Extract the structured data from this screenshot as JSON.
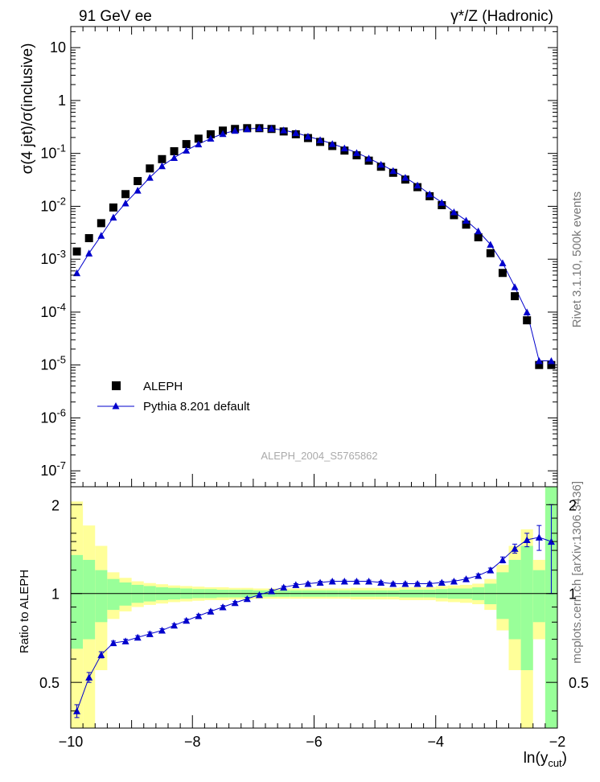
{
  "header": {
    "left_title": "91 GeV ee",
    "right_title": "γ*/Z (Hadronic)"
  },
  "side_labels": {
    "rivet": "Rivet 3.1.10,  500k events",
    "mcplots": "mcplots.cern.ch [arXiv:1306.3436]"
  },
  "watermark": "ALEPH_2004_S5765862",
  "colors": {
    "data": "#000000",
    "mc": "#0000cc",
    "band_inner": "#99ff99",
    "band_outer": "#ffff99",
    "watermark": "#aaaaaa",
    "side": "#777777"
  },
  "chart_data": [
    {
      "type": "scatter",
      "panel": "main",
      "ylabel": "σ(4 jet)/σ(inclusive)",
      "yscale": "log",
      "ylim": [
        5e-08,
        25
      ],
      "xlim": [
        -10.0,
        -2.0
      ],
      "x_ticks": [
        -10,
        -8,
        -6,
        -4,
        -2
      ],
      "y_tick_labels": [
        "10",
        "1",
        "10^-1",
        "10^-2",
        "10^-3",
        "10^-4",
        "10^-5",
        "10^-6",
        "10^-7"
      ],
      "legend_position": "bottom-left",
      "series": [
        {
          "name": "ALEPH",
          "marker": "square",
          "x": [
            -9.9,
            -9.7,
            -9.5,
            -9.3,
            -9.1,
            -8.9,
            -8.7,
            -8.5,
            -8.3,
            -8.1,
            -7.9,
            -7.7,
            -7.5,
            -7.3,
            -7.1,
            -6.9,
            -6.7,
            -6.5,
            -6.3,
            -6.1,
            -5.9,
            -5.7,
            -5.5,
            -5.3,
            -5.1,
            -4.9,
            -4.7,
            -4.5,
            -4.3,
            -4.1,
            -3.9,
            -3.7,
            -3.5,
            -3.3,
            -3.1,
            -2.9,
            -2.7,
            -2.5,
            -2.3,
            -2.1
          ],
          "y": [
            0.0014,
            0.0025,
            0.0048,
            0.0095,
            0.017,
            0.03,
            0.052,
            0.078,
            0.11,
            0.15,
            0.19,
            0.23,
            0.27,
            0.29,
            0.3,
            0.3,
            0.29,
            0.26,
            0.23,
            0.195,
            0.165,
            0.138,
            0.113,
            0.092,
            0.073,
            0.056,
            0.043,
            0.032,
            0.023,
            0.0155,
            0.0105,
            0.0068,
            0.0045,
            0.0026,
            0.0013,
            0.00055,
            0.0002,
            7e-05,
            1e-05,
            1e-05
          ]
        },
        {
          "name": "Pythia 8.201 default",
          "marker": "triangle",
          "x": [
            -9.9,
            -9.7,
            -9.5,
            -9.3,
            -9.1,
            -8.9,
            -8.7,
            -8.5,
            -8.3,
            -8.1,
            -7.9,
            -7.7,
            -7.5,
            -7.3,
            -7.1,
            -6.9,
            -6.7,
            -6.5,
            -6.3,
            -6.1,
            -5.9,
            -5.7,
            -5.5,
            -5.3,
            -5.1,
            -4.9,
            -4.7,
            -4.5,
            -4.3,
            -4.1,
            -3.9,
            -3.7,
            -3.5,
            -3.3,
            -3.1,
            -2.9,
            -2.7,
            -2.5,
            -2.3,
            -2.1
          ],
          "y": [
            0.00055,
            0.0013,
            0.0028,
            0.0062,
            0.0115,
            0.02,
            0.035,
            0.058,
            0.083,
            0.114,
            0.15,
            0.192,
            0.235,
            0.27,
            0.29,
            0.3,
            0.295,
            0.275,
            0.245,
            0.21,
            0.18,
            0.152,
            0.126,
            0.103,
            0.081,
            0.062,
            0.047,
            0.035,
            0.025,
            0.017,
            0.0118,
            0.0078,
            0.0054,
            0.0034,
            0.0019,
            0.00085,
            0.0003,
            0.0001,
            1.2e-05,
            1.2e-05
          ]
        }
      ]
    },
    {
      "type": "line",
      "panel": "ratio",
      "ylabel": "Ratio to ALEPH",
      "xlabel": "ln(y_cut)",
      "ylim": [
        0.35,
        2.3
      ],
      "xlim": [
        -10.0,
        -2.0
      ],
      "y_ticks": [
        0.5,
        1,
        2
      ],
      "reference_line": 1,
      "uncertainty_bands": {
        "x_edges": [
          -10.0,
          -9.8,
          -9.6,
          -9.4,
          -9.2,
          -9.0,
          -8.8,
          -8.6,
          -8.4,
          -8.2,
          -8.0,
          -7.8,
          -7.6,
          -7.4,
          -7.2,
          -7.0,
          -6.8,
          -6.6,
          -6.4,
          -6.2,
          -6.0,
          -5.8,
          -5.6,
          -5.4,
          -5.2,
          -5.0,
          -4.8,
          -4.6,
          -4.4,
          -4.2,
          -4.0,
          -3.8,
          -3.6,
          -3.4,
          -3.2,
          -3.0,
          -2.8,
          -2.6,
          -2.4,
          -2.2,
          -2.0
        ],
        "inner_half": [
          0.35,
          0.3,
          0.2,
          0.12,
          0.09,
          0.07,
          0.06,
          0.05,
          0.045,
          0.04,
          0.035,
          0.035,
          0.03,
          0.03,
          0.03,
          0.025,
          0.025,
          0.025,
          0.025,
          0.025,
          0.025,
          0.025,
          0.025,
          0.025,
          0.025,
          0.025,
          0.025,
          0.03,
          0.03,
          0.03,
          0.035,
          0.04,
          0.04,
          0.05,
          0.08,
          0.18,
          0.3,
          0.45,
          0.2,
          1.3
        ],
        "outer_half": [
          1.05,
          0.7,
          0.45,
          0.18,
          0.13,
          0.1,
          0.085,
          0.075,
          0.065,
          0.06,
          0.055,
          0.05,
          0.05,
          0.045,
          0.045,
          0.04,
          0.04,
          0.04,
          0.04,
          0.04,
          0.04,
          0.04,
          0.04,
          0.045,
          0.045,
          0.045,
          0.045,
          0.05,
          0.05,
          0.05,
          0.06,
          0.065,
          0.07,
          0.08,
          0.12,
          0.25,
          0.45,
          0.65,
          0.3,
          1.3
        ]
      },
      "series": [
        {
          "name": "Pythia 8.201 default",
          "x": [
            -9.9,
            -9.7,
            -9.5,
            -9.3,
            -9.1,
            -8.9,
            -8.7,
            -8.5,
            -8.3,
            -8.1,
            -7.9,
            -7.7,
            -7.5,
            -7.3,
            -7.1,
            -6.9,
            -6.7,
            -6.5,
            -6.3,
            -6.1,
            -5.9,
            -5.7,
            -5.5,
            -5.3,
            -5.1,
            -4.9,
            -4.7,
            -4.5,
            -4.3,
            -4.1,
            -3.9,
            -3.7,
            -3.5,
            -3.3,
            -3.1,
            -2.9,
            -2.7,
            -2.5,
            -2.3,
            -2.1
          ],
          "y": [
            0.4,
            0.52,
            0.62,
            0.68,
            0.69,
            0.71,
            0.73,
            0.75,
            0.78,
            0.81,
            0.84,
            0.87,
            0.9,
            0.93,
            0.96,
            0.99,
            1.02,
            1.05,
            1.07,
            1.08,
            1.09,
            1.1,
            1.1,
            1.1,
            1.1,
            1.09,
            1.08,
            1.08,
            1.08,
            1.08,
            1.09,
            1.1,
            1.12,
            1.15,
            1.2,
            1.3,
            1.42,
            1.52,
            1.55,
            1.5
          ],
          "err": [
            0.02,
            0.02,
            0.015,
            0.01,
            0.01,
            0.01,
            0.01,
            0.01,
            0.01,
            0.01,
            0.01,
            0.01,
            0.01,
            0.01,
            0.01,
            0.01,
            0.01,
            0.01,
            0.01,
            0.01,
            0.01,
            0.01,
            0.01,
            0.01,
            0.01,
            0.01,
            0.01,
            0.01,
            0.01,
            0.01,
            0.01,
            0.01,
            0.01,
            0.015,
            0.02,
            0.03,
            0.05,
            0.08,
            0.15,
            0.5
          ]
        }
      ]
    }
  ]
}
